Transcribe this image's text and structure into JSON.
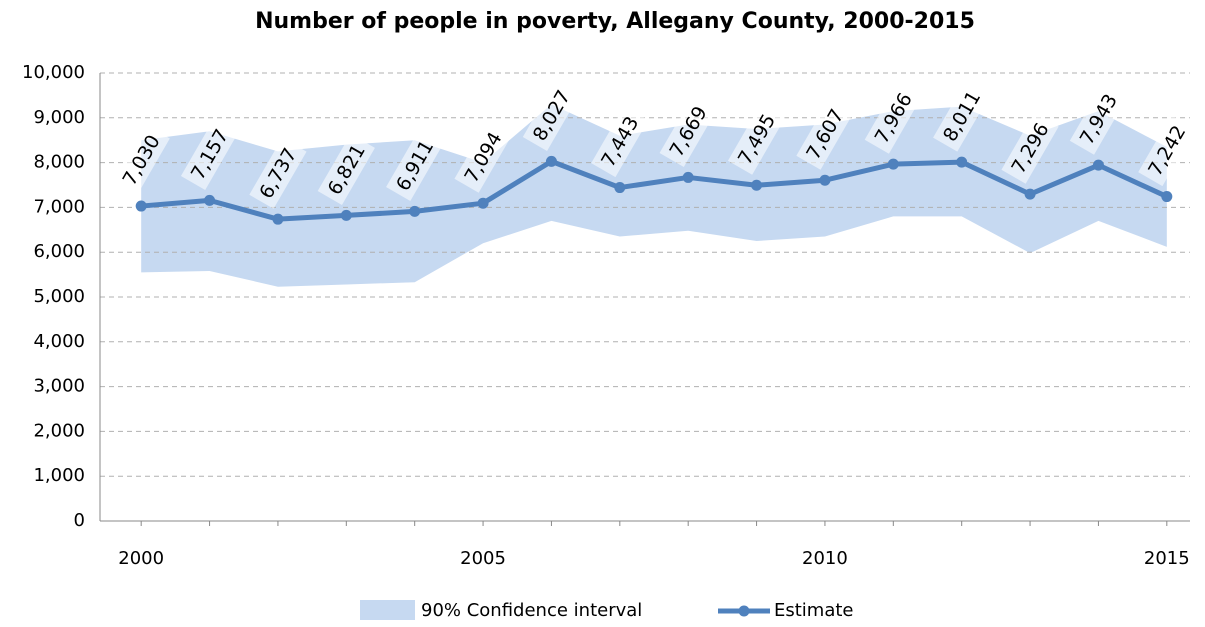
{
  "chart_data": {
    "type": "line",
    "title": "Number of people in poverty, Allegany County, 2000-2015",
    "categories": [
      "2000",
      null,
      null,
      null,
      null,
      "2005",
      null,
      null,
      null,
      null,
      "2010",
      null,
      null,
      null,
      null,
      "2015"
    ],
    "ylim": [
      0,
      10000
    ],
    "yticks": [
      0,
      {
        "value": 1000,
        "label": "1,000"
      },
      {
        "value": 2000,
        "label": "2,000"
      },
      {
        "value": 3000,
        "label": "3,000"
      },
      {
        "value": 4000,
        "label": "4,000"
      },
      {
        "value": 5000,
        "label": "5,000"
      },
      {
        "value": 6000,
        "label": "6,000"
      },
      {
        "value": 7000,
        "label": "7,000"
      },
      {
        "value": 8000,
        "label": "8,000"
      },
      {
        "value": 9000,
        "label": "9,000"
      },
      {
        "value": 10000,
        "label": "10,000"
      }
    ],
    "grid": true,
    "legend": "bottom",
    "series": [
      {
        "name": "90% Confidence interval",
        "color": "#c6d9f1",
        "lower": [
          5550,
          5580,
          5230,
          5280,
          5330,
          6200,
          6700,
          6350,
          6480,
          6250,
          6350,
          6800,
          6800,
          5980,
          6700,
          6120
        ],
        "upper": [
          8500,
          8700,
          8250,
          8400,
          8500,
          8000,
          9300,
          8600,
          8850,
          8750,
          8850,
          9150,
          9250,
          8600,
          9150,
          8350
        ]
      },
      {
        "name": "Estimate",
        "color": "#4f81bd",
        "values": [
          7030,
          7157,
          6737,
          6821,
          6911,
          7094,
          8027,
          7443,
          7669,
          7495,
          7607,
          7966,
          8011,
          7296,
          7943,
          7242
        ],
        "value_labels": [
          "7,030",
          "7,157",
          "6,737",
          "6,821",
          "6,911",
          "7,094",
          "8,027",
          "7,443",
          "7,669",
          "7,495",
          "7,607",
          "7,966",
          "8,011",
          "7,296",
          "7,943",
          "7,242"
        ]
      }
    ]
  }
}
